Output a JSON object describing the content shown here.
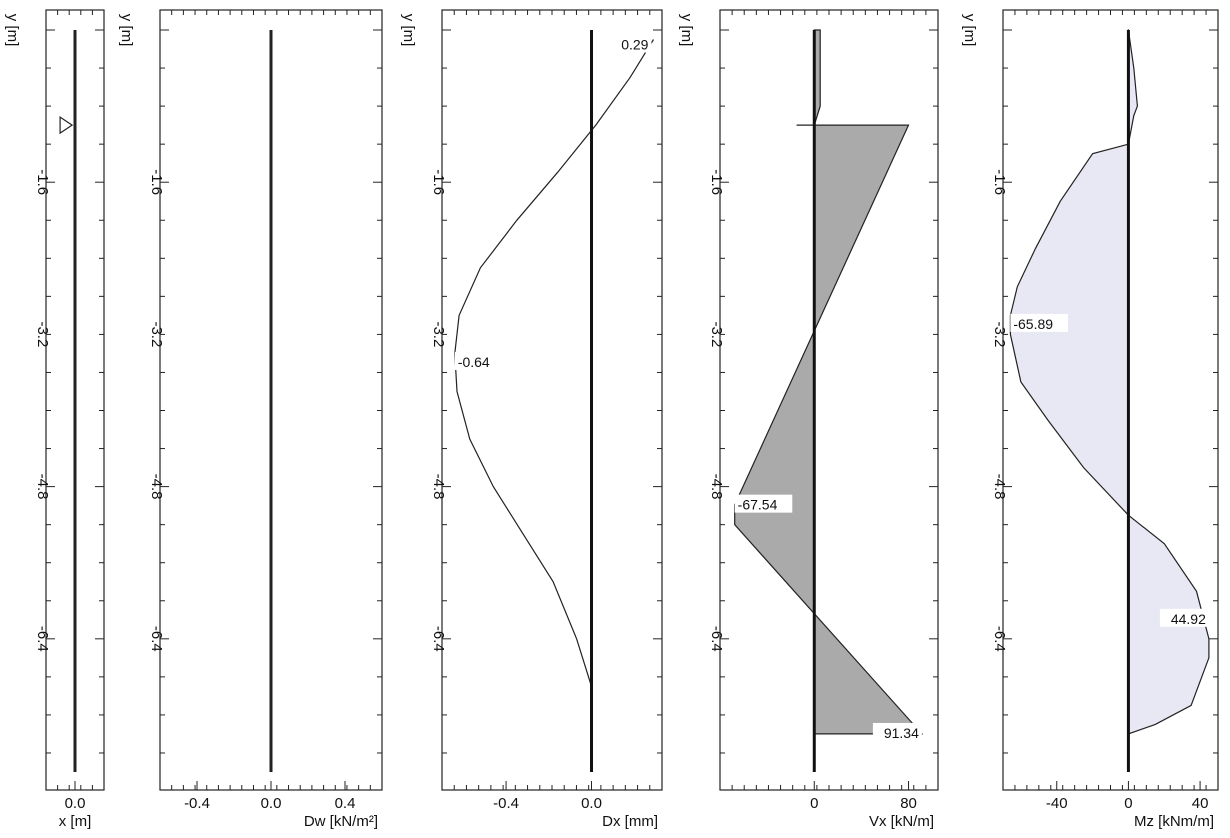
{
  "chart_data": [
    {
      "type": "line",
      "ylabel": "y [m]",
      "xlabel": "x [m]",
      "xlim": [
        -0.1,
        0.1
      ],
      "ylim": [
        -7.8,
        0.0
      ],
      "x_ticks": [
        0.0
      ],
      "x_tick_labels": [
        "0.0"
      ],
      "y_ticks": [
        -1.6,
        -3.2,
        -4.8,
        -6.4
      ],
      "y_tick_labels": [
        "-1.6",
        "-3.2",
        "-4.8",
        "-6.4"
      ],
      "series": [
        {
          "x": [
            0.0,
            0.0
          ],
          "y": [
            0.0,
            -7.8
          ]
        }
      ],
      "markers": [
        {
          "kind": "support-triangle",
          "x": -0.01,
          "y": -1.0
        }
      ],
      "fill": false
    },
    {
      "type": "line",
      "ylabel": "y [m]",
      "xlabel": "Dw [kN/m²]",
      "xlim": [
        -0.6,
        0.6
      ],
      "ylim": [
        -7.8,
        0.0
      ],
      "x_ticks": [
        -0.4,
        0.0,
        0.4
      ],
      "x_tick_labels": [
        "-0.4",
        "0.0",
        "0.4"
      ],
      "y_ticks": [
        -1.6,
        -3.2,
        -4.8,
        -6.4
      ],
      "y_tick_labels": [
        "-1.6",
        "-3.2",
        "-4.8",
        "-6.4"
      ],
      "series": [
        {
          "x": [
            0.0,
            0.0
          ],
          "y": [
            0.0,
            -7.8
          ]
        }
      ],
      "fill": false
    },
    {
      "type": "line",
      "ylabel": "y [m]",
      "xlabel": "Dx [mm]",
      "xlim": [
        -0.7,
        0.33
      ],
      "ylim": [
        -7.8,
        0.0
      ],
      "x_ticks": [
        -0.4,
        0.0
      ],
      "x_tick_labels": [
        "-0.4",
        "0.0"
      ],
      "y_ticks": [
        -1.6,
        -3.2,
        -4.8,
        -6.4
      ],
      "y_tick_labels": [
        "-1.6",
        "-3.2",
        "-4.8",
        "-6.4"
      ],
      "series": [
        {
          "x": [
            0.29,
            0.18,
            0.02,
            -0.16,
            -0.35,
            -0.52,
            -0.62,
            -0.64,
            -0.63,
            -0.57,
            -0.46,
            -0.32,
            -0.18,
            -0.07,
            0.0,
            0.0
          ],
          "y": [
            -0.1,
            -0.5,
            -1.0,
            -1.5,
            -2.0,
            -2.5,
            -3.0,
            -3.4,
            -3.8,
            -4.3,
            -4.8,
            -5.3,
            -5.8,
            -6.4,
            -6.9,
            -7.8
          ]
        }
      ],
      "axis_line": {
        "x": [
          0.0,
          0.0
        ],
        "y": [
          0.0,
          -7.8
        ]
      },
      "annotations": [
        {
          "text": "0.29",
          "x": 0.29,
          "y": -0.1
        },
        {
          "text": "-0.64",
          "x": -0.64,
          "y": -3.5
        }
      ],
      "fill": false
    },
    {
      "type": "area",
      "ylabel": "y [m]",
      "xlabel": "Vx [kN/m]",
      "xlim": [
        -80,
        105
      ],
      "ylim": [
        -7.8,
        0.0
      ],
      "x_ticks": [
        0,
        80
      ],
      "x_tick_labels": [
        "0",
        "80"
      ],
      "y_ticks": [
        -1.6,
        -3.2,
        -4.8,
        -6.4
      ],
      "y_tick_labels": [
        "-1.6",
        "-3.2",
        "-4.8",
        "-6.4"
      ],
      "series": [
        {
          "x": [
            5,
            5,
            0,
            -15,
            0,
            0,
            80,
            -67.54,
            -67.54,
            91.34,
            0
          ],
          "y": [
            0.0,
            -0.8,
            -1.0,
            -1.0,
            -1.0,
            -1.0,
            -1.0,
            -4.99,
            -5.2,
            -7.4,
            -7.4
          ]
        }
      ],
      "axis_line": {
        "x": [
          0,
          0
        ],
        "y": [
          0.0,
          -7.8
        ]
      },
      "annotations": [
        {
          "text": "-67.54",
          "x": -67.54,
          "y": -5.0
        },
        {
          "text": "91.34",
          "x": 91.34,
          "y": -7.4
        }
      ],
      "fill": true,
      "fill_color": "#aaaaaa"
    },
    {
      "type": "area",
      "ylabel": "y [m]",
      "xlabel": "Mz [kNm/m]",
      "xlim": [
        -70,
        50
      ],
      "ylim": [
        -7.8,
        0.0
      ],
      "x_ticks": [
        -40,
        0,
        40
      ],
      "x_tick_labels": [
        "-40",
        "0",
        "40"
      ],
      "y_ticks": [
        -1.6,
        -3.2,
        -4.8,
        -6.4
      ],
      "y_tick_labels": [
        "-1.6",
        "-3.2",
        "-4.8",
        "-6.4"
      ],
      "series": [
        {
          "x": [
            0,
            3,
            5,
            3,
            0,
            -20,
            -38,
            -52,
            -62,
            -65.89,
            -65.89,
            -60,
            -45,
            -25,
            0,
            20,
            38,
            44.92,
            44.92,
            44.92,
            35,
            15,
            0
          ],
          "y": [
            0.0,
            -0.4,
            -0.8,
            -0.9,
            -1.2,
            -1.3,
            -1.8,
            -2.3,
            -2.7,
            -3.0,
            -3.2,
            -3.7,
            -4.1,
            -4.6,
            -5.1,
            -5.4,
            -5.9,
            -6.4,
            -6.4,
            -6.6,
            -7.1,
            -7.3,
            -7.4
          ]
        }
      ],
      "axis_line": {
        "x": [
          0,
          0
        ],
        "y": [
          0.0,
          -7.8
        ]
      },
      "annotations": [
        {
          "text": "-65.89",
          "x": -65.89,
          "y": -3.1
        },
        {
          "text": "44.92",
          "x": 44.92,
          "y": -6.2
        }
      ],
      "fill": true,
      "fill_color": "#e8e8f4"
    }
  ]
}
